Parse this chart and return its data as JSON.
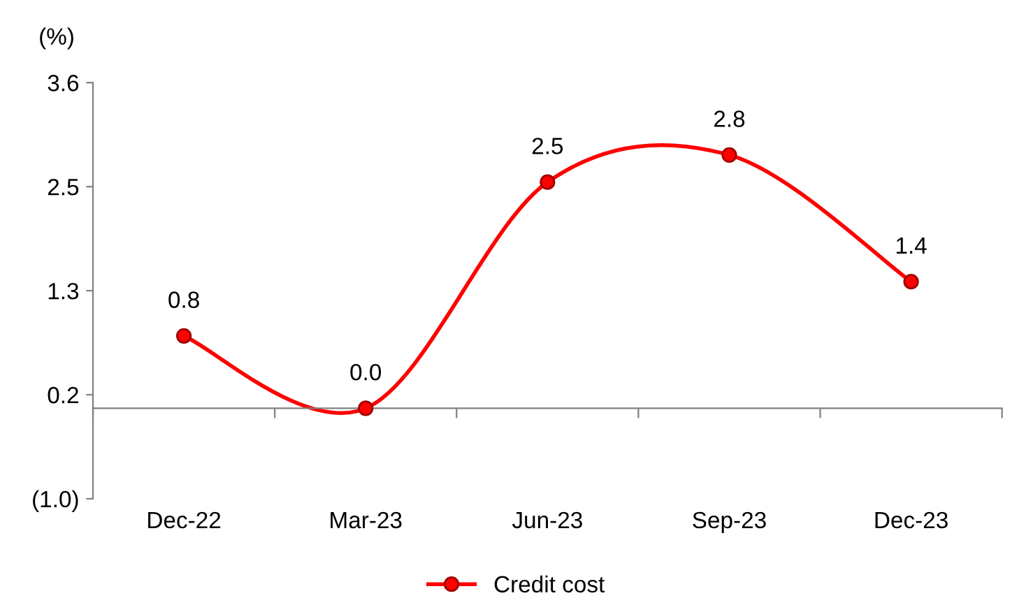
{
  "chart_data": {
    "type": "line",
    "ylabel": "(%)",
    "categories": [
      "Dec-22",
      "Mar-23",
      "Jun-23",
      "Sep-23",
      "Dec-23"
    ],
    "series": [
      {
        "name": "Credit cost",
        "color": "#ff0000",
        "values": [
          0.8,
          0.0,
          2.5,
          2.8,
          1.4
        ],
        "value_labels": [
          "0.8",
          "0.0",
          "2.5",
          "2.8",
          "1.4"
        ]
      }
    ],
    "ylim": [
      -1.0,
      3.6
    ],
    "yticks": [
      {
        "value": -1.0,
        "label": "(1.0)"
      },
      {
        "value": 0.15,
        "label": "0.2"
      },
      {
        "value": 1.3,
        "label": "1.3"
      },
      {
        "value": 2.45,
        "label": "2.5"
      },
      {
        "value": 3.6,
        "label": "3.6"
      }
    ],
    "legend": "bottom",
    "marker": "circle",
    "line_style": "solid",
    "grid": false
  }
}
